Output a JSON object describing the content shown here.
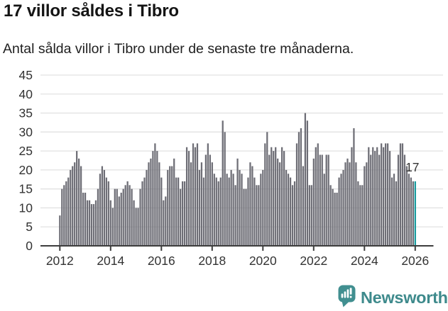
{
  "header": {
    "title": "17 villor såldes i Tibro",
    "subtitle": "Antal sålda villor i Tibro under de senaste tre månaderna."
  },
  "chart_data": {
    "type": "bar",
    "title": "17 villor såldes i Tibro",
    "subtitle": "Antal sålda villor i Tibro under de senaste tre månaderna.",
    "unit": "sålda villor (rullande 3 månader)",
    "x_start_month": "2012-01",
    "x_interval": "1 month",
    "x_tick_labels": [
      "2012",
      "2014",
      "2016",
      "2018",
      "2020",
      "2022",
      "2024",
      "2026"
    ],
    "y_ticks": [
      0,
      5,
      10,
      15,
      20,
      25,
      30,
      35,
      40,
      45
    ],
    "ylim": [
      0,
      45
    ],
    "grid": true,
    "legend_position": "none",
    "bar_color": "#6e6e76",
    "highlight_color": "#169a9d",
    "grid_color": "#e2e2e2",
    "axis_color": "#3d3d3d",
    "text_color": "#333333",
    "values": [
      8,
      15,
      16,
      17,
      18,
      20,
      21,
      22,
      25,
      23,
      21,
      14,
      14,
      12,
      12,
      11,
      11,
      12,
      15,
      19,
      21,
      20,
      18,
      17,
      12,
      10,
      15,
      15,
      13,
      14,
      15,
      16,
      17,
      16,
      15,
      12,
      10,
      10,
      15,
      17,
      18,
      20,
      22,
      23,
      25,
      27,
      25,
      22,
      18,
      12,
      13,
      20,
      21,
      21,
      23,
      18,
      18,
      15,
      17,
      17,
      26,
      25,
      22,
      27,
      26,
      27,
      20,
      22,
      18,
      24,
      27,
      24,
      22,
      19,
      18,
      17,
      18,
      33,
      30,
      19,
      18,
      20,
      19,
      16,
      23,
      20,
      19,
      15,
      15,
      18,
      22,
      21,
      18,
      16,
      16,
      19,
      20,
      27,
      30,
      24,
      26,
      25,
      26,
      23,
      22,
      26,
      25,
      20,
      19,
      18,
      16,
      17,
      27,
      30,
      31,
      21,
      35,
      33,
      16,
      16,
      23,
      26,
      27,
      24,
      24,
      19,
      24,
      24,
      16,
      15,
      14,
      14,
      18,
      19,
      20,
      22,
      23,
      22,
      26,
      31,
      22,
      17,
      16,
      16,
      21,
      22,
      26,
      24,
      26,
      25,
      26,
      24,
      27,
      26,
      27,
      27,
      25,
      18,
      19,
      17,
      24,
      27,
      27,
      24,
      21,
      19,
      18,
      17,
      17
    ],
    "highlight": {
      "index": 168,
      "value": 17,
      "label": "17"
    }
  },
  "footer": {
    "brand": "Newsworthy",
    "brand_color": "#3e8a8c",
    "logo_color": "#418f90",
    "logo_icon": "newsworthy-speech-bubble-chart-icon"
  }
}
